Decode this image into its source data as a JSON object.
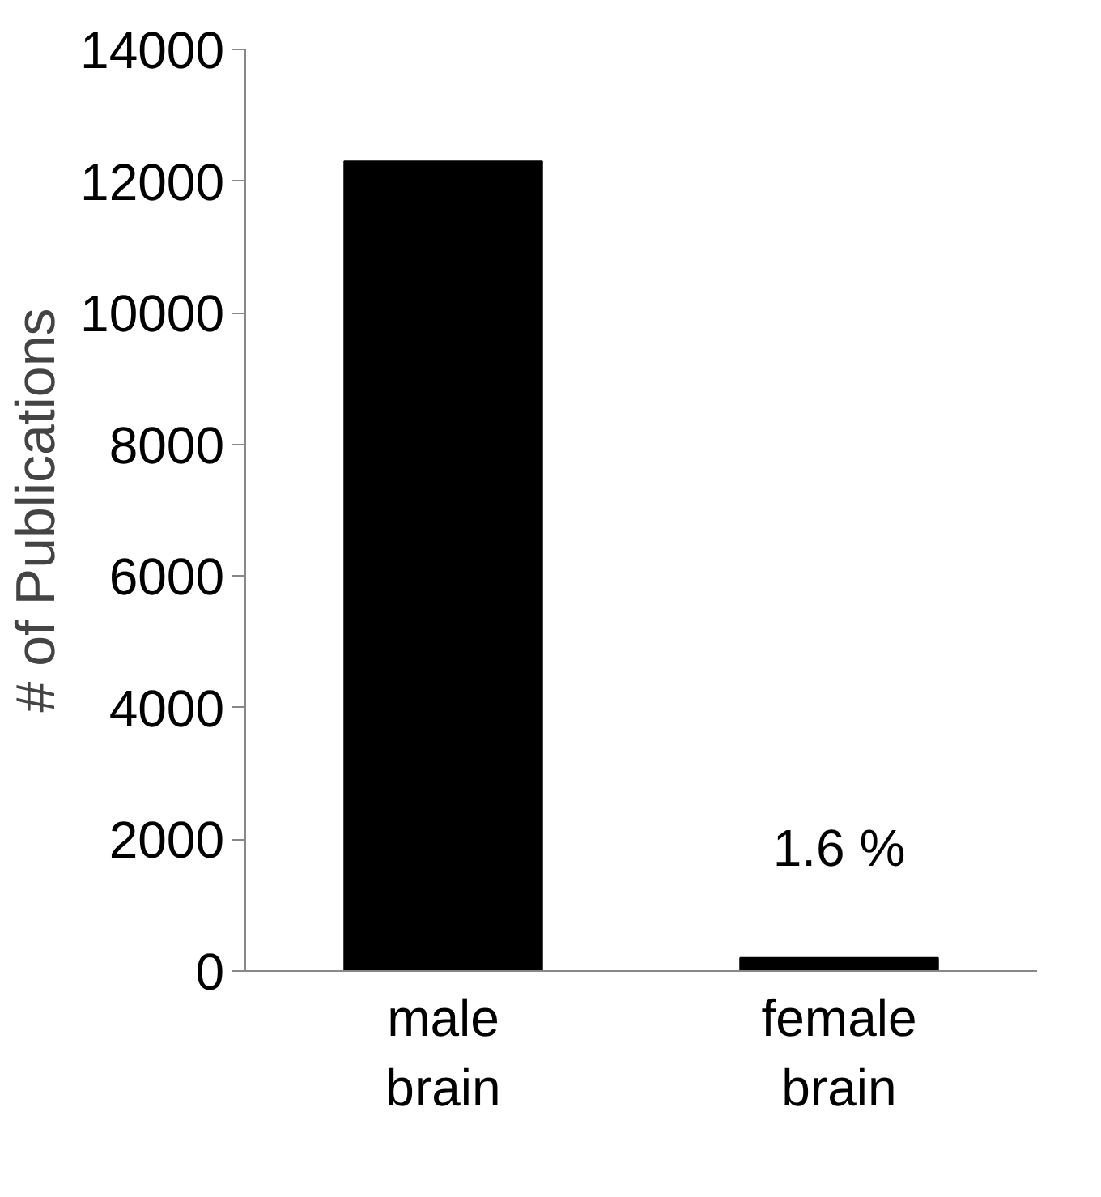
{
  "chart_data": {
    "type": "bar",
    "ylabel": "# of Publications",
    "categories": [
      "male brain",
      "female brain"
    ],
    "values": [
      12300,
      200
    ],
    "color": "#000000",
    "ylim": [
      0,
      14000
    ],
    "yticks": [
      0,
      2000,
      4000,
      6000,
      8000,
      10000,
      12000,
      14000
    ],
    "grid": false,
    "annotations": [
      "1.6 %"
    ]
  }
}
